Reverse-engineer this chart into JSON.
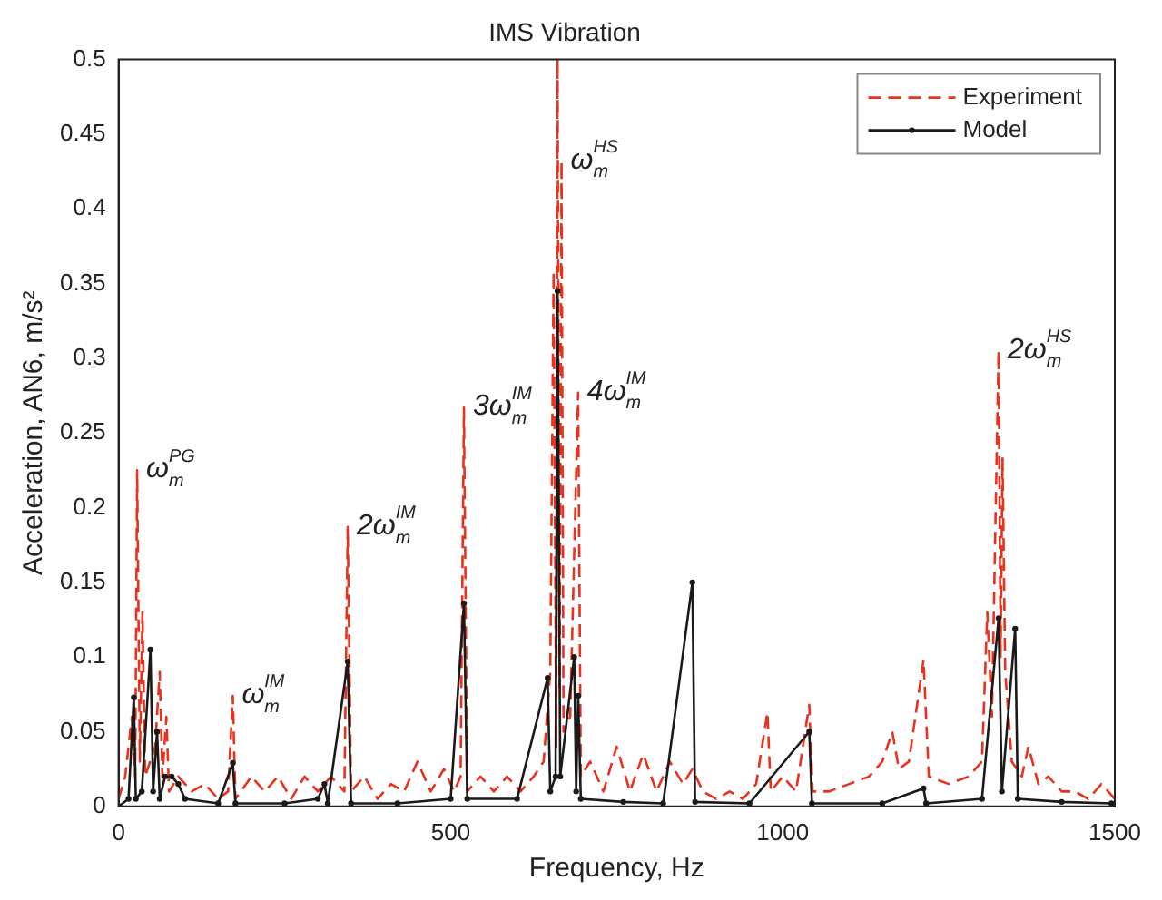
{
  "chart_data": {
    "type": "line",
    "title": "IMS Vibration",
    "xlabel": "Frequency, Hz",
    "ylabel": "Acceleration, AN6, m/s²",
    "xlim": [
      0,
      1500
    ],
    "xticks": [
      0,
      500,
      1000,
      1500
    ],
    "ylim": [
      0,
      0.5
    ],
    "yticks": [
      0,
      0.05,
      0.1,
      0.15,
      0.2,
      0.25,
      0.3,
      0.35,
      0.4,
      0.45,
      0.5
    ],
    "grid": false,
    "legend": "top right",
    "series": [
      {
        "name": "Experiment",
        "color": "#e8321e",
        "line_style": "dashed",
        "marker": "none",
        "x": [
          0,
          10,
          20,
          25,
          28,
          32,
          36,
          40,
          55,
          62,
          66,
          72,
          76,
          90,
          110,
          130,
          150,
          165,
          172,
          176,
          200,
          220,
          240,
          260,
          280,
          300,
          320,
          340,
          345,
          350,
          370,
          390,
          410,
          430,
          450,
          470,
          490,
          505,
          515,
          520,
          525,
          545,
          565,
          585,
          605,
          625,
          640,
          650,
          655,
          659,
          661,
          664,
          667,
          670,
          680,
          692,
          696,
          710,
          730,
          750,
          770,
          790,
          810,
          830,
          850,
          864,
          880,
          900,
          920,
          940,
          960,
          977,
          982,
          1000,
          1020,
          1040,
          1045,
          1070,
          1100,
          1130,
          1150,
          1165,
          1175,
          1190,
          1212,
          1220,
          1250,
          1280,
          1300,
          1308,
          1315,
          1325,
          1328,
          1331,
          1335,
          1345,
          1360,
          1370,
          1385,
          1400,
          1420,
          1440,
          1460,
          1480,
          1500
        ],
        "values": [
          0.005,
          0.02,
          0.06,
          0.02,
          0.225,
          0.03,
          0.13,
          0.02,
          0.04,
          0.09,
          0.02,
          0.06,
          0.01,
          0.02,
          0.01,
          0.015,
          0.005,
          0.01,
          0.074,
          0.005,
          0.02,
          0.01,
          0.02,
          0.005,
          0.02,
          0.01,
          0.02,
          0.01,
          0.187,
          0.01,
          0.02,
          0.005,
          0.015,
          0.01,
          0.03,
          0.01,
          0.025,
          0.01,
          0.02,
          0.267,
          0.01,
          0.02,
          0.01,
          0.02,
          0.01,
          0.02,
          0.03,
          0.09,
          0.358,
          0.04,
          0.5,
          0.08,
          0.432,
          0.05,
          0.06,
          0.277,
          0.02,
          0.03,
          0.01,
          0.04,
          0.01,
          0.035,
          0.01,
          0.03,
          0.015,
          0.025,
          0.01,
          0.005,
          0.01,
          0.005,
          0.015,
          0.063,
          0.01,
          0.02,
          0.01,
          0.068,
          0.01,
          0.01,
          0.015,
          0.02,
          0.03,
          0.05,
          0.025,
          0.03,
          0.098,
          0.02,
          0.015,
          0.02,
          0.03,
          0.13,
          0.06,
          0.305,
          0.1,
          0.233,
          0.09,
          0.03,
          0.02,
          0.04,
          0.015,
          0.02,
          0.01,
          0.01,
          0.005,
          0.015,
          0.005
        ]
      },
      {
        "name": "Model",
        "color": "#1a1a1a",
        "line_style": "solid",
        "marker": "circle",
        "x": [
          0,
          15,
          23,
          26,
          35,
          48,
          52,
          58,
          62,
          70,
          80,
          90,
          100,
          150,
          172,
          176,
          250,
          300,
          310,
          315,
          345,
          350,
          420,
          500,
          520,
          525,
          600,
          646,
          650,
          658,
          661,
          665,
          686,
          689,
          692,
          696,
          760,
          820,
          864,
          868,
          950,
          1040,
          1044,
          1150,
          1212,
          1216,
          1300,
          1325,
          1330,
          1350,
          1354,
          1420,
          1495
        ],
        "values": [
          0,
          0.005,
          0.073,
          0.005,
          0.01,
          0.105,
          0.01,
          0.05,
          0.005,
          0.02,
          0.02,
          0.015,
          0.005,
          0.002,
          0.029,
          0.002,
          0.002,
          0.005,
          0.015,
          0.002,
          0.097,
          0.002,
          0.002,
          0.005,
          0.136,
          0.005,
          0.005,
          0.086,
          0.01,
          0.02,
          0.345,
          0.02,
          0.1,
          0.01,
          0.074,
          0.005,
          0.003,
          0.002,
          0.15,
          0.003,
          0.002,
          0.05,
          0.002,
          0.002,
          0.012,
          0.002,
          0.005,
          0.126,
          0.01,
          0.119,
          0.005,
          0.003,
          0.002
        ]
      }
    ],
    "annotations": [
      {
        "text": "ω$_{m}$$^{PG}$",
        "x": 28,
        "y": 0.225
      },
      {
        "text": "ω$_{m}$$^{IM}$",
        "x": 172,
        "y": 0.074
      },
      {
        "text": "2ω$_{m}$$^{IM}$",
        "x": 345,
        "y": 0.187
      },
      {
        "text": "3ω$_{m}$$^{IM}$",
        "x": 520,
        "y": 0.267
      },
      {
        "text": "ω$_{m}$$^{HS}$",
        "x": 667,
        "y": 0.432
      },
      {
        "text": "4ω$_{m}$$^{IM}$",
        "x": 692,
        "y": 0.277
      },
      {
        "text": "2ω$_{m}$$^{HS}$",
        "x": 1325,
        "y": 0.305
      }
    ]
  }
}
